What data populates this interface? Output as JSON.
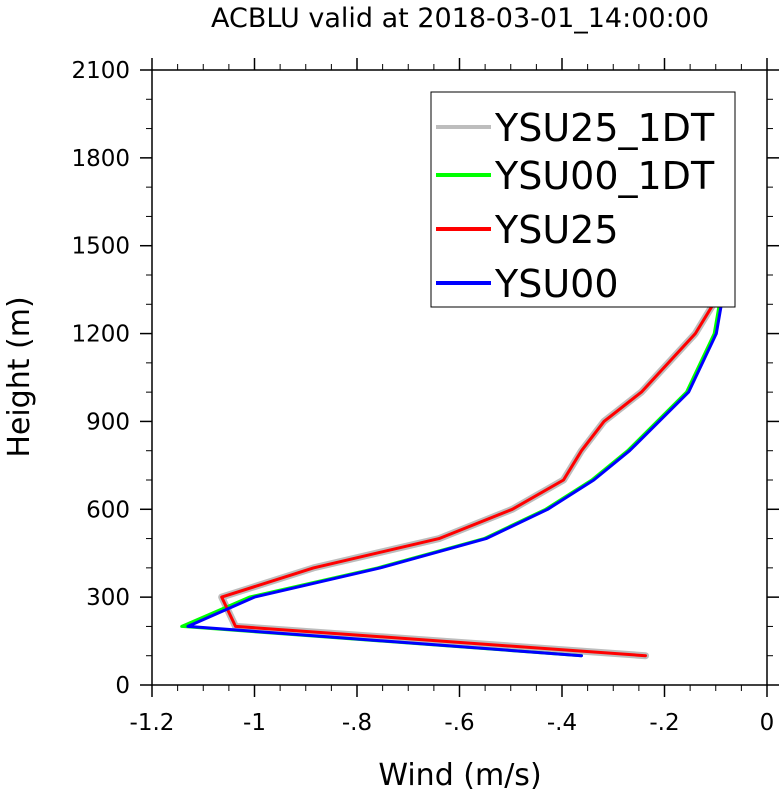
{
  "chart_data": {
    "type": "line",
    "title": "ACBLU valid at 2018-03-01_14:00:00",
    "xlabel": "Wind (m/s)",
    "ylabel": "Height (m)",
    "xlim": [
      -1.2,
      0
    ],
    "ylim": [
      0,
      2100
    ],
    "x_ticks": [
      -1.2,
      -1,
      -0.8,
      -0.6,
      -0.4,
      -0.2,
      0
    ],
    "x_tick_labels": [
      "-1.2",
      "-1",
      "-.8",
      "-.6",
      "-.4",
      "-.2",
      "0"
    ],
    "y_ticks": [
      0,
      300,
      600,
      900,
      1200,
      1500,
      1800,
      2100
    ],
    "y_tick_labels": [
      "0",
      "300",
      "600",
      "900",
      "1200",
      "1500",
      "1800",
      "2100"
    ],
    "grid": false,
    "legend_position": "top-right",
    "series": [
      {
        "name": "YSU25_1DT",
        "color": "#bdbdbd",
        "width": 7,
        "x": [
          -0.237,
          -1.037,
          -1.064,
          -0.885,
          -0.64,
          -0.497,
          -0.397,
          -0.362,
          -0.318,
          -0.245,
          -0.14,
          -0.105,
          -0.118,
          -0.155,
          -0.172,
          -0.165,
          -0.145,
          -0.125,
          -0.088
        ],
        "y": [
          100,
          200,
          300,
          400,
          500,
          600,
          700,
          800,
          900,
          1000,
          1200,
          1300,
          1400,
          1500,
          1600,
          1700,
          1800,
          1900,
          2000
        ]
      },
      {
        "name": "YSU00_1DT",
        "color": "#00ff00",
        "width": 3,
        "x": [
          -0.362,
          -1.142,
          -1.01,
          -0.76,
          -0.552,
          -0.432,
          -0.342,
          -0.272,
          -0.157,
          -0.103,
          -0.093,
          -0.112
        ],
        "y": [
          100,
          200,
          300,
          400,
          500,
          600,
          700,
          800,
          1000,
          1200,
          1300,
          1400
        ]
      },
      {
        "name": "YSU25",
        "color": "#ff0000",
        "width": 3,
        "x": [
          -0.237,
          -1.037,
          -1.064,
          -0.885,
          -0.64,
          -0.497,
          -0.397,
          -0.362,
          -0.318,
          -0.245,
          -0.14,
          -0.105,
          -0.118,
          -0.155,
          -0.172,
          -0.165,
          -0.145,
          -0.125,
          -0.088
        ],
        "y": [
          100,
          200,
          300,
          400,
          500,
          600,
          700,
          800,
          900,
          1000,
          1200,
          1300,
          1400,
          1500,
          1600,
          1700,
          1800,
          1900,
          2000
        ]
      },
      {
        "name": "YSU00",
        "color": "#0000ff",
        "width": 3,
        "x": [
          -0.362,
          -1.13,
          -1.0,
          -0.755,
          -0.548,
          -0.428,
          -0.338,
          -0.268,
          -0.153,
          -0.099,
          -0.089,
          -0.108
        ],
        "y": [
          100,
          200,
          300,
          400,
          500,
          600,
          700,
          800,
          1000,
          1200,
          1300,
          1400
        ]
      }
    ]
  }
}
